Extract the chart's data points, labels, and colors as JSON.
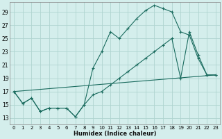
{
  "xlabel": "Humidex (Indice chaleur)",
  "bg_color": "#d4eeec",
  "grid_color": "#b0d4d0",
  "line_color": "#1a6b5e",
  "xlim": [
    -0.5,
    23.5
  ],
  "ylim": [
    12,
    30.5
  ],
  "yticks": [
    13,
    15,
    17,
    19,
    21,
    23,
    25,
    27,
    29
  ],
  "xticks": [
    0,
    1,
    2,
    3,
    4,
    5,
    6,
    7,
    8,
    9,
    10,
    11,
    12,
    13,
    14,
    15,
    16,
    17,
    18,
    19,
    20,
    21,
    22,
    23
  ],
  "series1_x": [
    0,
    1,
    2,
    3,
    4,
    5,
    6,
    7,
    8,
    9,
    10,
    11,
    12,
    13,
    14,
    15,
    16,
    17,
    18,
    19,
    20,
    21,
    22,
    23
  ],
  "series1_y": [
    17.0,
    15.2,
    16.0,
    14.0,
    14.5,
    14.5,
    14.5,
    13.2,
    15.0,
    20.5,
    23.0,
    26.0,
    25.0,
    26.5,
    28.0,
    29.2,
    30.0,
    29.5,
    29.0,
    26.0,
    25.5,
    22.0,
    19.5,
    19.5
  ],
  "series2_x": [
    0,
    1,
    2,
    3,
    4,
    5,
    6,
    7,
    8,
    9,
    10,
    11,
    12,
    13,
    14,
    15,
    16,
    17,
    18,
    19,
    20,
    21,
    22,
    23
  ],
  "series2_y": [
    17.0,
    15.2,
    16.0,
    14.0,
    14.5,
    14.5,
    14.5,
    13.2,
    15.0,
    16.5,
    17.0,
    18.0,
    19.0,
    20.0,
    21.0,
    22.0,
    23.0,
    24.0,
    25.0,
    19.0,
    26.0,
    22.5,
    19.5,
    19.5
  ],
  "series3_x": [
    0,
    23
  ],
  "series3_y": [
    17.0,
    19.5
  ]
}
